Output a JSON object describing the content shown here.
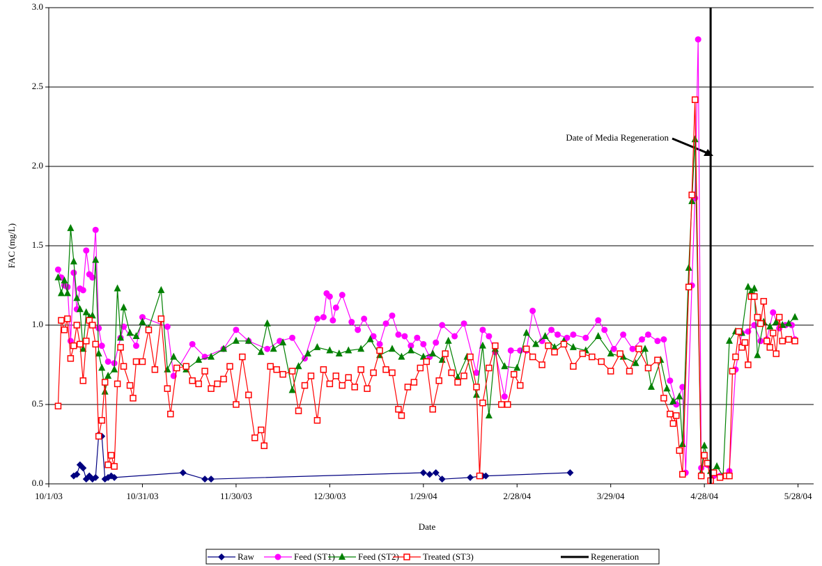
{
  "chart_data": {
    "type": "line",
    "ylabel": "FAC (mg/L)",
    "xlabel": "Date",
    "annotation": {
      "text": "Date of Media Regeneration"
    },
    "ylim": [
      0,
      3
    ],
    "yticks": [
      {
        "value": 0,
        "label": "0.0"
      },
      {
        "value": 0.5,
        "label": "0.5"
      },
      {
        "value": 1,
        "label": "1.0"
      },
      {
        "value": 1.5,
        "label": "1.5"
      },
      {
        "value": 2,
        "label": "2.0"
      },
      {
        "value": 2.5,
        "label": "2.5"
      },
      {
        "value": 3,
        "label": "3.0"
      }
    ],
    "xlim": [
      "2003-10-01",
      "2004-06-02"
    ],
    "xticks": [
      {
        "value": "2003-10-01",
        "label": "10/1/03"
      },
      {
        "value": "2003-10-31",
        "label": "10/31/03"
      },
      {
        "value": "2003-11-30",
        "label": "11/30/03"
      },
      {
        "value": "2003-12-30",
        "label": "12/30/03"
      },
      {
        "value": "2004-01-29",
        "label": "1/29/04"
      },
      {
        "value": "2004-02-28",
        "label": "2/28/04"
      },
      {
        "value": "2004-03-29",
        "label": "3/29/04"
      },
      {
        "value": "2004-04-28",
        "label": "4/28/04"
      },
      {
        "value": "2004-05-28",
        "label": "5/28/04"
      }
    ],
    "grid": true,
    "legend": "bottom",
    "series": [
      {
        "name": "Raw",
        "color": "#000080",
        "marker": "diamond",
        "x": [
          "2003-10-09",
          "2003-10-10",
          "2003-10-11",
          "2003-10-12",
          "2003-10-13",
          "2003-10-14",
          "2003-10-15",
          "2003-10-16",
          "2003-10-17",
          "2003-10-18",
          "2003-10-19",
          "2003-10-20",
          "2003-10-21",
          "2003-10-22",
          "2003-11-13",
          "2003-11-20",
          "2003-11-22",
          "2004-01-29",
          "2004-01-31",
          "2004-02-02",
          "2004-02-04",
          "2004-02-13",
          "2004-02-17",
          "2004-02-18",
          "2004-03-16"
        ],
        "values": [
          0.05,
          0.06,
          0.12,
          0.1,
          0.03,
          0.05,
          0.03,
          0.04,
          0.31,
          0.3,
          0.03,
          0.04,
          0.05,
          0.04,
          0.07,
          0.03,
          0.03,
          0.07,
          0.06,
          0.07,
          0.03,
          0.04,
          0.05,
          0.05,
          0.07
        ]
      },
      {
        "name": "Feed (ST1)",
        "color": "#ff00ff",
        "marker": "circle",
        "x": [
          "2003-10-04",
          "2003-10-05",
          "2003-10-06",
          "2003-10-07",
          "2003-10-08",
          "2003-10-09",
          "2003-10-10",
          "2003-10-11",
          "2003-10-12",
          "2003-10-13",
          "2003-10-14",
          "2003-10-15",
          "2003-10-16",
          "2003-10-17",
          "2003-10-18",
          "2003-10-20",
          "2003-10-22",
          "2003-10-24",
          "2003-10-25",
          "2003-10-29",
          "2003-10-31",
          "2003-11-08",
          "2003-11-10",
          "2003-11-16",
          "2003-11-20",
          "2003-11-26",
          "2003-11-30",
          "2003-12-04",
          "2003-12-10",
          "2003-12-14",
          "2003-12-18",
          "2003-12-22",
          "2003-12-26",
          "2003-12-28",
          "2003-12-29",
          "2003-12-30",
          "2003-12-31",
          "2004-01-01",
          "2004-01-03",
          "2004-01-06",
          "2004-01-08",
          "2004-01-10",
          "2004-01-13",
          "2004-01-15",
          "2004-01-17",
          "2004-01-19",
          "2004-01-21",
          "2004-01-23",
          "2004-01-25",
          "2004-01-27",
          "2004-01-29",
          "2004-01-31",
          "2004-02-02",
          "2004-02-04",
          "2004-02-08",
          "2004-02-11",
          "2004-02-15",
          "2004-02-17",
          "2004-02-19",
          "2004-02-21",
          "2004-02-24",
          "2004-02-26",
          "2004-02-29",
          "2004-03-02",
          "2004-03-04",
          "2004-03-07",
          "2004-03-10",
          "2004-03-12",
          "2004-03-15",
          "2004-03-17",
          "2004-03-21",
          "2004-03-25",
          "2004-03-27",
          "2004-03-30",
          "2004-04-02",
          "2004-04-05",
          "2004-04-08",
          "2004-04-10",
          "2004-04-13",
          "2004-04-15",
          "2004-04-17",
          "2004-04-19",
          "2004-04-21",
          "2004-04-22",
          "2004-04-24",
          "2004-04-25",
          "2004-04-26",
          "2004-04-27",
          "2004-04-29",
          "2004-05-01",
          "2004-05-03",
          "2004-05-06",
          "2004-05-08",
          "2004-05-10",
          "2004-05-12",
          "2004-05-14",
          "2004-05-16",
          "2004-05-18",
          "2004-05-20",
          "2004-05-22",
          "2004-05-24",
          "2004-05-26",
          "2004-05-27"
        ],
        "values": [
          1.35,
          1.3,
          1.25,
          1.24,
          0.9,
          1.33,
          1.1,
          1.23,
          1.22,
          1.47,
          1.32,
          1.3,
          1.6,
          0.98,
          0.87,
          0.77,
          0.76,
          0.92,
          0.99,
          0.87,
          1.05,
          0.99,
          0.68,
          0.88,
          0.8,
          0.85,
          0.97,
          0.9,
          0.85,
          0.9,
          0.92,
          0.79,
          1.04,
          1.05,
          1.2,
          1.18,
          1.03,
          1.11,
          1.19,
          1.02,
          0.97,
          1.04,
          0.93,
          0.88,
          1.01,
          1.06,
          0.94,
          0.93,
          0.87,
          0.92,
          0.88,
          0.8,
          0.89,
          1.0,
          0.93,
          1.01,
          0.7,
          0.97,
          0.93,
          0.83,
          0.55,
          0.84,
          0.84,
          0.84,
          1.09,
          0.9,
          0.97,
          0.94,
          0.92,
          0.94,
          0.92,
          1.03,
          0.97,
          0.85,
          0.94,
          0.85,
          0.91,
          0.94,
          0.9,
          0.91,
          0.65,
          0.5,
          0.61,
          0.07,
          1.25,
          1.8,
          2.8,
          0.1,
          0.12,
          0.05,
          0.05,
          0.08,
          0.72,
          0.95,
          0.96,
          1.0,
          0.9,
          0.91,
          1.08,
          0.98,
          1.0,
          1.0,
          0.91
        ]
      },
      {
        "name": "Feed (ST2)",
        "color": "#008000",
        "marker": "triangle",
        "x": [
          "2003-10-04",
          "2003-10-05",
          "2003-10-06",
          "2003-10-07",
          "2003-10-08",
          "2003-10-09",
          "2003-10-10",
          "2003-10-11",
          "2003-10-12",
          "2003-10-13",
          "2003-10-14",
          "2003-10-15",
          "2003-10-16",
          "2003-10-17",
          "2003-10-18",
          "2003-10-19",
          "2003-10-20",
          "2003-10-22",
          "2003-10-23",
          "2003-10-24",
          "2003-10-25",
          "2003-10-27",
          "2003-10-29",
          "2003-10-31",
          "2003-11-02",
          "2003-11-06",
          "2003-11-08",
          "2003-11-10",
          "2003-11-14",
          "2003-11-18",
          "2003-11-22",
          "2003-11-26",
          "2003-11-30",
          "2003-12-04",
          "2003-12-08",
          "2003-12-10",
          "2003-12-12",
          "2003-12-15",
          "2003-12-18",
          "2003-12-20",
          "2003-12-23",
          "2003-12-26",
          "2003-12-30",
          "2004-01-02",
          "2004-01-05",
          "2004-01-09",
          "2004-01-12",
          "2004-01-15",
          "2004-01-19",
          "2004-01-22",
          "2004-01-25",
          "2004-01-29",
          "2004-02-01",
          "2004-02-04",
          "2004-02-06",
          "2004-02-09",
          "2004-02-12",
          "2004-02-15",
          "2004-02-17",
          "2004-02-19",
          "2004-02-21",
          "2004-02-24",
          "2004-02-28",
          "2004-03-02",
          "2004-03-05",
          "2004-03-08",
          "2004-03-11",
          "2004-03-14",
          "2004-03-17",
          "2004-03-21",
          "2004-03-25",
          "2004-03-29",
          "2004-04-02",
          "2004-04-06",
          "2004-04-09",
          "2004-04-11",
          "2004-04-14",
          "2004-04-16",
          "2004-04-18",
          "2004-04-20",
          "2004-04-21",
          "2004-04-23",
          "2004-04-24",
          "2004-04-25",
          "2004-04-27",
          "2004-04-28",
          "2004-04-30",
          "2004-05-02",
          "2004-05-04",
          "2004-05-06",
          "2004-05-08",
          "2004-05-10",
          "2004-05-12",
          "2004-05-13",
          "2004-05-14",
          "2004-05-15",
          "2004-05-17",
          "2004-05-19",
          "2004-05-21",
          "2004-05-23",
          "2004-05-25",
          "2004-05-27"
        ],
        "values": [
          1.3,
          1.2,
          1.28,
          1.2,
          1.61,
          1.4,
          1.17,
          1.1,
          0.85,
          1.08,
          1.05,
          1.06,
          1.41,
          0.82,
          0.73,
          0.58,
          0.68,
          0.72,
          1.23,
          0.92,
          1.11,
          0.95,
          0.93,
          1.02,
          0.98,
          1.22,
          0.72,
          0.8,
          0.72,
          0.78,
          0.8,
          0.85,
          0.9,
          0.9,
          0.83,
          1.01,
          0.85,
          0.89,
          0.59,
          0.74,
          0.82,
          0.86,
          0.84,
          0.82,
          0.84,
          0.85,
          0.91,
          0.81,
          0.85,
          0.8,
          0.84,
          0.8,
          0.82,
          0.78,
          0.9,
          0.67,
          0.8,
          0.56,
          0.87,
          0.43,
          0.85,
          0.74,
          0.73,
          0.95,
          0.88,
          0.93,
          0.86,
          0.9,
          0.86,
          0.84,
          0.93,
          0.82,
          0.8,
          0.76,
          0.85,
          0.61,
          0.78,
          0.6,
          0.52,
          0.55,
          0.25,
          1.36,
          1.78,
          2.17,
          0.07,
          0.24,
          0.08,
          0.11,
          0.05,
          0.9,
          0.96,
          0.95,
          1.24,
          1.21,
          1.23,
          0.81,
          1.02,
          0.99,
          1.02,
          1.0,
          1.01,
          1.05
        ]
      },
      {
        "name": "Treated (ST3)",
        "color": "#ff0000",
        "marker": "square",
        "x": [
          "2003-10-04",
          "2003-10-05",
          "2003-10-06",
          "2003-10-07",
          "2003-10-08",
          "2003-10-09",
          "2003-10-10",
          "2003-10-11",
          "2003-10-12",
          "2003-10-13",
          "2003-10-14",
          "2003-10-15",
          "2003-10-16",
          "2003-10-17",
          "2003-10-18",
          "2003-10-19",
          "2003-10-20",
          "2003-10-21",
          "2003-10-22",
          "2003-10-23",
          "2003-10-24",
          "2003-10-25",
          "2003-10-27",
          "2003-10-28",
          "2003-10-29",
          "2003-10-31",
          "2003-11-02",
          "2003-11-04",
          "2003-11-06",
          "2003-11-08",
          "2003-11-09",
          "2003-11-11",
          "2003-11-14",
          "2003-11-16",
          "2003-11-18",
          "2003-11-20",
          "2003-11-22",
          "2003-11-24",
          "2003-11-26",
          "2003-11-28",
          "2003-11-30",
          "2003-12-02",
          "2003-12-04",
          "2003-12-06",
          "2003-12-08",
          "2003-12-09",
          "2003-12-11",
          "2003-12-13",
          "2003-12-15",
          "2003-12-18",
          "2003-12-20",
          "2003-12-22",
          "2003-12-24",
          "2003-12-26",
          "2003-12-28",
          "2003-12-30",
          "2004-01-01",
          "2004-01-03",
          "2004-01-05",
          "2004-01-07",
          "2004-01-09",
          "2004-01-11",
          "2004-01-13",
          "2004-01-15",
          "2004-01-17",
          "2004-01-19",
          "2004-01-21",
          "2004-01-22",
          "2004-01-24",
          "2004-01-26",
          "2004-01-28",
          "2004-01-30",
          "2004-02-01",
          "2004-02-03",
          "2004-02-05",
          "2004-02-07",
          "2004-02-09",
          "2004-02-11",
          "2004-02-13",
          "2004-02-15",
          "2004-02-16",
          "2004-02-17",
          "2004-02-19",
          "2004-02-21",
          "2004-02-23",
          "2004-02-25",
          "2004-02-27",
          "2004-02-29",
          "2004-03-02",
          "2004-03-04",
          "2004-03-07",
          "2004-03-09",
          "2004-03-11",
          "2004-03-14",
          "2004-03-17",
          "2004-03-20",
          "2004-03-23",
          "2004-03-26",
          "2004-03-29",
          "2004-04-01",
          "2004-04-04",
          "2004-04-07",
          "2004-04-10",
          "2004-04-13",
          "2004-04-15",
          "2004-04-17",
          "2004-04-18",
          "2004-04-19",
          "2004-04-20",
          "2004-04-21",
          "2004-04-23",
          "2004-04-24",
          "2004-04-25",
          "2004-04-27",
          "2004-04-28",
          "2004-04-29",
          "2004-04-30",
          "2004-05-01",
          "2004-05-03",
          "2004-05-05",
          "2004-05-06",
          "2004-05-07",
          "2004-05-08",
          "2004-05-09",
          "2004-05-10",
          "2004-05-11",
          "2004-05-12",
          "2004-05-13",
          "2004-05-14",
          "2004-05-15",
          "2004-05-16",
          "2004-05-17",
          "2004-05-18",
          "2004-05-19",
          "2004-05-20",
          "2004-05-21",
          "2004-05-22",
          "2004-05-23",
          "2004-05-25",
          "2004-05-27"
        ],
        "values": [
          0.49,
          1.03,
          0.97,
          1.04,
          0.79,
          0.87,
          1.0,
          0.88,
          0.65,
          0.9,
          1.03,
          1.0,
          0.88,
          0.3,
          0.4,
          0.64,
          0.12,
          0.18,
          0.11,
          0.63,
          0.86,
          0.74,
          0.62,
          0.54,
          0.77,
          0.77,
          0.97,
          0.72,
          1.04,
          0.6,
          0.44,
          0.73,
          0.74,
          0.65,
          0.63,
          0.71,
          0.6,
          0.63,
          0.66,
          0.74,
          0.5,
          0.8,
          0.56,
          0.29,
          0.34,
          0.24,
          0.74,
          0.72,
          0.69,
          0.71,
          0.46,
          0.62,
          0.68,
          0.4,
          0.72,
          0.63,
          0.68,
          0.62,
          0.67,
          0.61,
          0.72,
          0.6,
          0.7,
          0.84,
          0.72,
          0.7,
          0.47,
          0.43,
          0.61,
          0.64,
          0.73,
          0.77,
          0.47,
          0.65,
          0.82,
          0.7,
          0.64,
          0.68,
          0.8,
          0.61,
          0.05,
          0.51,
          0.73,
          0.87,
          0.5,
          0.5,
          0.69,
          0.62,
          0.85,
          0.8,
          0.75,
          0.87,
          0.83,
          0.88,
          0.74,
          0.82,
          0.8,
          0.77,
          0.71,
          0.82,
          0.71,
          0.85,
          0.73,
          0.78,
          0.54,
          0.44,
          0.38,
          0.43,
          0.21,
          0.06,
          1.24,
          1.82,
          2.42,
          0.05,
          0.18,
          0.13,
          0.02,
          0.07,
          0.04,
          0.05,
          0.05,
          0.71,
          0.8,
          0.96,
          0.86,
          0.89,
          0.75,
          1.18,
          1.18,
          1.05,
          1.01,
          1.15,
          0.9,
          0.86,
          0.95,
          0.82,
          1.05,
          0.9,
          0.91,
          0.9
        ]
      },
      {
        "name": "Regeneration",
        "color": "#000000",
        "marker": "none",
        "x": [
          "2004-04-30",
          "2004-04-30"
        ],
        "values": [
          0,
          3
        ]
      }
    ]
  }
}
